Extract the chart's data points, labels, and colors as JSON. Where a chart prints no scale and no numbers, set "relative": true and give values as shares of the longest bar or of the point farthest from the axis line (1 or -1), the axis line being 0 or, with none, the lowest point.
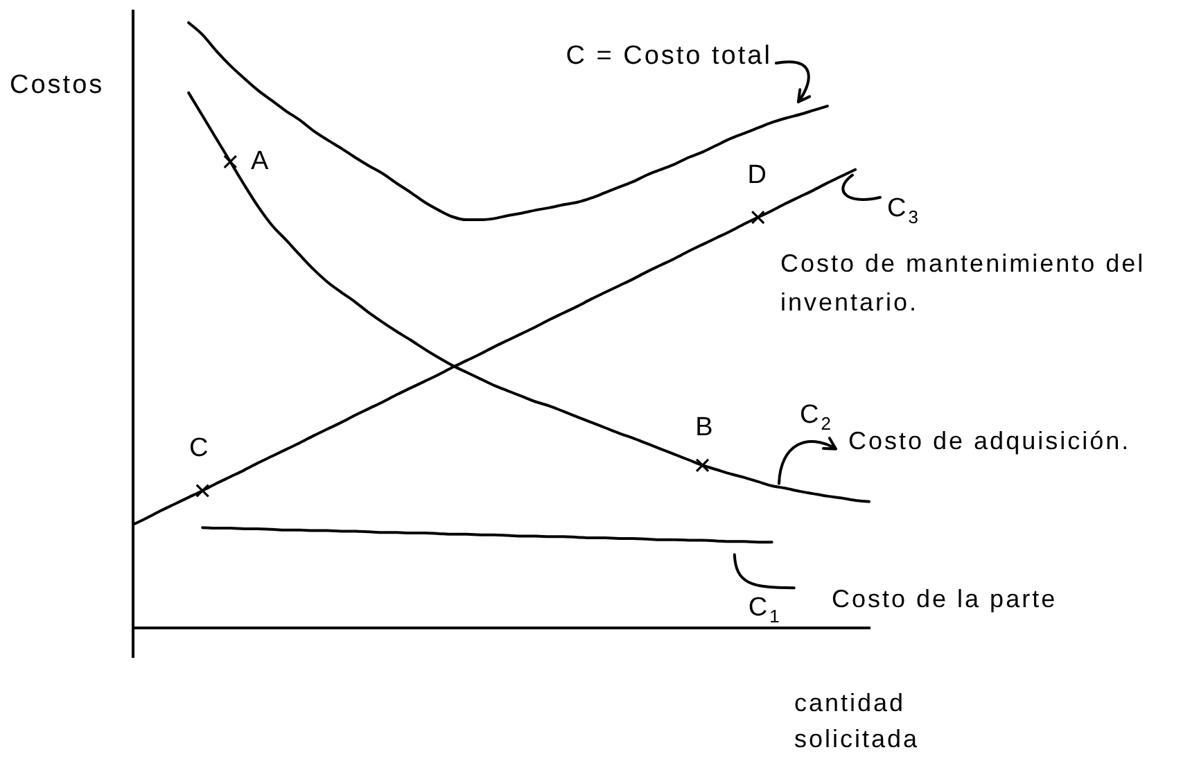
{
  "chart_data": {
    "type": "line",
    "relative": true,
    "legend": "right",
    "xlabel": "cantidad solicitada",
    "ylabel": "Costos",
    "categories": [
      null,
      null,
      null,
      null,
      null,
      null,
      null,
      null,
      null,
      null,
      null,
      null,
      null,
      null,
      null,
      null,
      null,
      null,
      null,
      null,
      null,
      null,
      null,
      null,
      null,
      null,
      null,
      null,
      null,
      null,
      null,
      null,
      null,
      null,
      null,
      null,
      null,
      null,
      null,
      null,
      null,
      null,
      null,
      null,
      null,
      null,
      null,
      null,
      null,
      null,
      null,
      null,
      null,
      null
    ],
    "series": [
      {
        "name": "C = Costo total",
        "color": "#000000",
        "values": [
          null,
          null,
          null,
          null,
          1.0,
          0.98,
          0.953,
          0.929,
          0.908,
          0.888,
          0.871,
          0.854,
          0.839,
          0.821,
          0.806,
          0.792,
          0.777,
          0.763,
          0.75,
          0.734,
          0.719,
          0.703,
          0.69,
          0.679,
          0.674,
          0.674,
          0.676,
          0.681,
          0.685,
          0.69,
          0.694,
          0.699,
          0.703,
          0.71,
          0.719,
          0.728,
          0.737,
          0.748,
          0.757,
          0.766,
          0.777,
          0.786,
          0.797,
          0.808,
          0.817,
          0.826,
          0.835,
          0.842,
          0.848,
          0.855,
          0.862,
          null,
          null,
          null
        ]
      },
      {
        "name": "C$_{3}$",
        "color": "#000000",
        "values": [
          0.17,
          0.181,
          0.193,
          0.204,
          0.215,
          0.226,
          0.238,
          0.249,
          0.26,
          0.272,
          0.283,
          0.294,
          0.305,
          0.317,
          0.328,
          0.339,
          0.351,
          0.362,
          0.373,
          0.385,
          0.396,
          0.407,
          0.418,
          0.43,
          0.441,
          0.452,
          0.464,
          0.475,
          0.486,
          0.497,
          0.509,
          0.52,
          0.531,
          0.543,
          0.554,
          0.565,
          0.576,
          0.588,
          0.599,
          0.61,
          0.622,
          0.633,
          0.644,
          0.655,
          0.667,
          0.678,
          0.689,
          0.701,
          0.712,
          0.723,
          0.735,
          0.746,
          0.757,
          null
        ]
      },
      {
        "name": "C$_{2}$",
        "color": "#000000",
        "values": [
          null,
          null,
          null,
          null,
          0.884,
          0.846,
          0.808,
          0.77,
          0.732,
          0.696,
          0.665,
          0.641,
          0.616,
          0.592,
          0.571,
          0.554,
          0.538,
          0.52,
          0.504,
          0.489,
          0.475,
          0.46,
          0.446,
          0.433,
          0.422,
          0.411,
          0.4,
          0.391,
          0.382,
          0.373,
          0.366,
          0.357,
          0.348,
          0.339,
          0.33,
          0.321,
          0.313,
          0.304,
          0.295,
          0.286,
          0.277,
          0.268,
          0.261,
          0.254,
          0.248,
          0.241,
          0.234,
          0.23,
          0.225,
          0.221,
          0.217,
          0.214,
          0.21,
          0.208
        ]
      },
      {
        "name": "C$_{1}$",
        "color": "#000000",
        "values": [
          null,
          null,
          null,
          null,
          null,
          0.165,
          0.164,
          0.164,
          0.163,
          0.163,
          0.162,
          0.161,
          0.161,
          0.16,
          0.16,
          0.159,
          0.159,
          0.158,
          0.157,
          0.157,
          0.156,
          0.156,
          0.155,
          0.154,
          0.154,
          0.153,
          0.153,
          0.152,
          0.151,
          0.151,
          0.15,
          0.15,
          0.149,
          0.148,
          0.148,
          0.147,
          0.147,
          0.146,
          0.145,
          0.145,
          0.144,
          0.144,
          0.143,
          0.142,
          0.142,
          0.141,
          0.141,
          null,
          null,
          null,
          null,
          null,
          null,
          null
        ]
      },
      {
        "marker": "cross",
        "color": "#000000",
        "values": [
          null,
          null,
          null,
          null,
          null,
          0.226,
          null,
          0.77,
          null,
          null,
          null,
          null,
          null,
          null,
          null,
          null,
          null,
          null,
          null,
          null,
          null,
          null,
          null,
          null,
          null,
          null,
          null,
          null,
          null,
          null,
          null,
          null,
          null,
          null,
          null,
          null,
          null,
          null,
          null,
          null,
          null,
          0.268,
          null,
          null,
          null,
          0.678,
          null,
          null,
          null,
          null,
          null,
          null,
          null,
          null
        ]
      }
    ],
    "annotations": [
      "C",
      "A",
      "B",
      "D",
      "Costo de mantenimiento del inventario.",
      "Costo de adquisición.",
      "Costo de la parte"
    ]
  }
}
